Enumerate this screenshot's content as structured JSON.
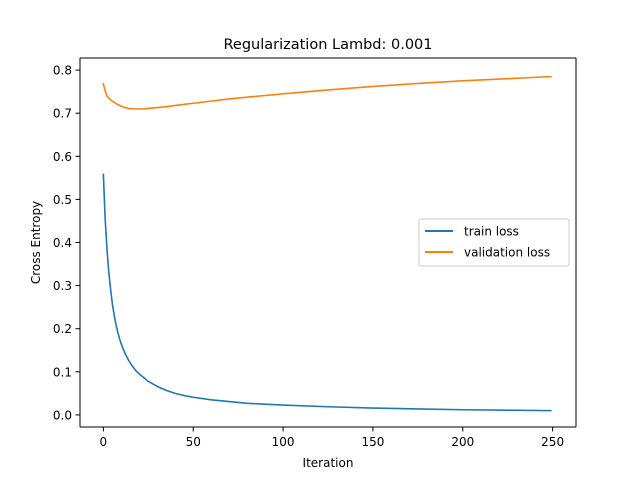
{
  "chart_data": {
    "type": "line",
    "title": "Regularization Lambd: 0.001",
    "xlabel": "Iteration",
    "ylabel": "Cross Entropy",
    "xlim": [
      -13,
      263
    ],
    "ylim": [
      -0.028,
      0.828
    ],
    "xticks": [
      0,
      50,
      100,
      150,
      200,
      250
    ],
    "yticks": [
      0.0,
      0.1,
      0.2,
      0.3,
      0.4,
      0.5,
      0.6,
      0.7,
      0.8
    ],
    "ytick_labels": [
      "0.0",
      "0.1",
      "0.2",
      "0.3",
      "0.4",
      "0.5",
      "0.6",
      "0.7",
      "0.8"
    ],
    "grid": false,
    "legend_position": "center-right",
    "series": [
      {
        "name": "train loss",
        "color": "#1f77b4",
        "x": [
          0,
          1,
          2,
          3,
          4,
          5,
          6,
          7,
          8,
          9,
          10,
          12,
          14,
          16,
          18,
          20,
          25,
          30,
          35,
          40,
          45,
          50,
          60,
          70,
          80,
          90,
          100,
          125,
          150,
          175,
          200,
          225,
          249
        ],
        "y": [
          0.558,
          0.455,
          0.385,
          0.332,
          0.292,
          0.258,
          0.232,
          0.21,
          0.192,
          0.177,
          0.164,
          0.143,
          0.127,
          0.114,
          0.103,
          0.095,
          0.078,
          0.066,
          0.057,
          0.05,
          0.045,
          0.041,
          0.035,
          0.031,
          0.027,
          0.025,
          0.023,
          0.019,
          0.016,
          0.014,
          0.012,
          0.011,
          0.01
        ]
      },
      {
        "name": "validation loss",
        "color": "#ff7f0e",
        "x": [
          0,
          1,
          2,
          3,
          4,
          5,
          6,
          8,
          10,
          12,
          14,
          16,
          18,
          20,
          22,
          25,
          30,
          35,
          40,
          50,
          60,
          70,
          80,
          90,
          100,
          125,
          150,
          175,
          200,
          225,
          249
        ],
        "y": [
          0.768,
          0.752,
          0.74,
          0.735,
          0.731,
          0.728,
          0.725,
          0.72,
          0.716,
          0.713,
          0.711,
          0.71,
          0.71,
          0.71,
          0.71,
          0.711,
          0.713,
          0.715,
          0.718,
          0.723,
          0.728,
          0.733,
          0.737,
          0.741,
          0.745,
          0.754,
          0.762,
          0.769,
          0.775,
          0.78,
          0.785
        ]
      }
    ]
  }
}
